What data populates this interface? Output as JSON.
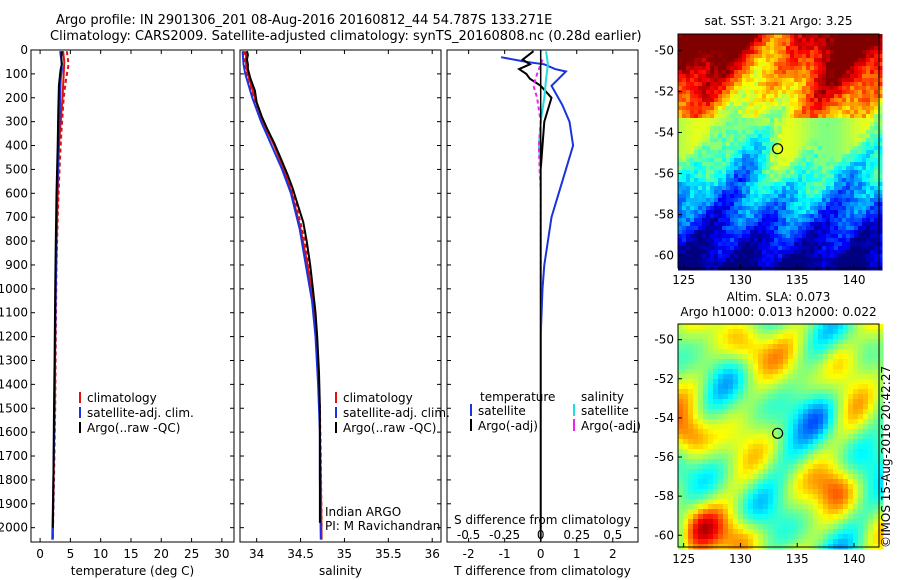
{
  "header": {
    "line1": "Argo profile: IN 2901306_201 08-Aug-2016 20160812_44 54.787S 133.271E",
    "line2": "Climatology: CARS2009. Satellite-adjusted climatology: synTS_20160808.nc (0.28d earlier)"
  },
  "colors": {
    "climatology": "#dd1111",
    "satellite": "#1a33dd",
    "argo": "#000000",
    "cyan": "#22dddd",
    "magenta": "#ee22ee"
  },
  "chart_data": [
    {
      "id": "temperature",
      "type": "line",
      "xlabel": "temperature (deg C)",
      "ylabel": "",
      "xlim": [
        -1.5,
        32
      ],
      "ylim": [
        2060,
        0
      ],
      "xticks": [
        0,
        5,
        10,
        15,
        20,
        25,
        30
      ],
      "yticks": [
        0,
        100,
        200,
        300,
        400,
        500,
        600,
        700,
        800,
        900,
        1000,
        1100,
        1200,
        1300,
        1400,
        1500,
        1600,
        1700,
        1800,
        1900,
        2000
      ],
      "legend": {
        "placement": "lower-right",
        "entries": [
          "climatology",
          "satellite-adj. clim.",
          "Argo(..raw -QC)"
        ]
      },
      "series": [
        {
          "name": "climatology",
          "color": "#dd1111",
          "dashed": false,
          "points": [
            [
              3.8,
              5
            ],
            [
              4.0,
              50
            ],
            [
              3.9,
              100
            ],
            [
              3.7,
              200
            ],
            [
              3.4,
              300
            ],
            [
              3.1,
              400
            ],
            [
              2.9,
              600
            ],
            [
              2.7,
              800
            ],
            [
              2.6,
              1000
            ],
            [
              2.5,
              1200
            ],
            [
              2.4,
              1500
            ],
            [
              2.2,
              1800
            ],
            [
              2.0,
              2050
            ]
          ]
        },
        {
          "name": "climatology",
          "color": "#dd1111",
          "dashed": true,
          "points": [
            [
              4.4,
              5
            ],
            [
              4.7,
              60
            ],
            [
              4.3,
              120
            ],
            [
              3.9,
              200
            ],
            [
              3.5,
              350
            ],
            [
              3.2,
              500
            ],
            [
              2.9,
              700
            ],
            [
              2.7,
              900
            ],
            [
              2.6,
              1200
            ],
            [
              2.5,
              1500
            ],
            [
              2.3,
              1800
            ],
            [
              2.1,
              2050
            ]
          ]
        },
        {
          "name": "satellite-adj. clim.",
          "color": "#1a33dd",
          "dashed": false,
          "points": [
            [
              3.3,
              5
            ],
            [
              3.5,
              40
            ],
            [
              3.6,
              80
            ],
            [
              3.4,
              120
            ],
            [
              3.3,
              200
            ],
            [
              3.2,
              300
            ],
            [
              3.0,
              450
            ],
            [
              2.8,
              600
            ],
            [
              2.7,
              800
            ],
            [
              2.6,
              1000
            ],
            [
              2.5,
              1200
            ],
            [
              2.4,
              1500
            ],
            [
              2.2,
              1800
            ],
            [
              2.1,
              2050
            ]
          ]
        },
        {
          "name": "Argo(..raw -QC)",
          "color": "#000000",
          "dashed": false,
          "points": [
            [
              3.6,
              5
            ],
            [
              3.5,
              30
            ],
            [
              3.6,
              60
            ],
            [
              3.4,
              80
            ],
            [
              3.3,
              100
            ],
            [
              3.1,
              150
            ],
            [
              3.0,
              250
            ],
            [
              2.9,
              400
            ],
            [
              2.7,
              600
            ],
            [
              2.6,
              800
            ],
            [
              2.5,
              1000
            ],
            [
              2.4,
              1300
            ],
            [
              2.3,
              1500
            ],
            [
              2.2,
              1800
            ],
            [
              2.1,
              2000
            ]
          ]
        }
      ]
    },
    {
      "id": "salinity",
      "type": "line",
      "xlabel": "salinity",
      "ylabel": "",
      "xlim": [
        33.81,
        36.1
      ],
      "ylim": [
        2060,
        0
      ],
      "xticks": [
        34,
        34.5,
        35,
        35.5,
        36
      ],
      "legend": {
        "placement": "lower-right",
        "entries": [
          "climatology",
          "satellite-adj. clim.",
          "Argo(..raw -QC)"
        ]
      },
      "annotations": [
        "Indian ARGO",
        "PI: M Ravichandran"
      ],
      "series": [
        {
          "name": "climatology",
          "color": "#dd1111",
          "dashed": false,
          "points": [
            [
              33.88,
              5
            ],
            [
              33.88,
              60
            ],
            [
              33.9,
              100
            ],
            [
              33.98,
              200
            ],
            [
              34.07,
              300
            ],
            [
              34.2,
              400
            ],
            [
              34.31,
              500
            ],
            [
              34.4,
              600
            ],
            [
              34.5,
              750
            ],
            [
              34.58,
              900
            ],
            [
              34.64,
              1050
            ],
            [
              34.68,
              1200
            ],
            [
              34.71,
              1400
            ],
            [
              34.72,
              1600
            ],
            [
              34.73,
              1800
            ],
            [
              34.74,
              2050
            ]
          ]
        },
        {
          "name": "climatology",
          "color": "#dd1111",
          "dashed": true,
          "points": [
            [
              33.86,
              5
            ],
            [
              33.87,
              70
            ],
            [
              33.9,
              130
            ],
            [
              33.99,
              220
            ],
            [
              34.1,
              320
            ],
            [
              34.23,
              420
            ],
            [
              34.35,
              530
            ],
            [
              34.45,
              650
            ],
            [
              34.55,
              800
            ],
            [
              34.62,
              950
            ],
            [
              34.67,
              1100
            ],
            [
              34.7,
              1300
            ],
            [
              34.72,
              1500
            ],
            [
              34.73,
              1700
            ],
            [
              34.74,
              2000
            ]
          ]
        },
        {
          "name": "satellite-adj. clim.",
          "color": "#1a33dd",
          "dashed": false,
          "points": [
            [
              33.84,
              5
            ],
            [
              33.85,
              60
            ],
            [
              33.87,
              100
            ],
            [
              33.95,
              200
            ],
            [
              34.05,
              300
            ],
            [
              34.17,
              400
            ],
            [
              34.29,
              500
            ],
            [
              34.39,
              600
            ],
            [
              34.49,
              750
            ],
            [
              34.56,
              900
            ],
            [
              34.63,
              1050
            ],
            [
              34.67,
              1200
            ],
            [
              34.7,
              1400
            ],
            [
              34.72,
              1600
            ],
            [
              34.72,
              1800
            ],
            [
              34.73,
              2050
            ]
          ]
        },
        {
          "name": "Argo(..raw -QC)",
          "color": "#000000",
          "dashed": false,
          "points": [
            [
              33.89,
              5
            ],
            [
              33.9,
              20
            ],
            [
              33.89,
              40
            ],
            [
              33.9,
              60
            ],
            [
              33.9,
              80
            ],
            [
              33.93,
              120
            ],
            [
              33.98,
              170
            ],
            [
              34.0,
              220
            ],
            [
              34.06,
              280
            ],
            [
              34.12,
              330
            ],
            [
              34.2,
              390
            ],
            [
              34.27,
              450
            ],
            [
              34.35,
              520
            ],
            [
              34.41,
              580
            ],
            [
              34.47,
              650
            ],
            [
              34.53,
              720
            ],
            [
              34.57,
              800
            ],
            [
              34.61,
              900
            ],
            [
              34.64,
              1000
            ],
            [
              34.67,
              1100
            ],
            [
              34.69,
              1200
            ],
            [
              34.71,
              1350
            ],
            [
              34.72,
              1500
            ],
            [
              34.72,
              1700
            ],
            [
              34.72,
              1900
            ],
            [
              34.72,
              1980
            ]
          ]
        }
      ]
    },
    {
      "id": "difference",
      "type": "line",
      "xlabel": "T difference from climatology",
      "top_axis_label": "S difference from climatology",
      "xlim": [
        -2.6,
        2.7
      ],
      "ylim": [
        2060,
        0
      ],
      "xticks": [
        -2,
        -1,
        0,
        1,
        2
      ],
      "top_ticks": [
        -0.5,
        -0.25,
        0,
        0.25,
        0.5
      ],
      "top_tick_labels": [
        "-0.5",
        "-0.25",
        "0",
        "0.25",
        "0.5"
      ],
      "legend": {
        "placement": "lower-center",
        "left_header": "temperature",
        "right_header": "salinity",
        "entries": [
          "satellite",
          "Argo(-adj)",
          "satellite",
          "Argo(-adj)"
        ]
      },
      "series": [
        {
          "name": "temperature satellite",
          "color": "#1a33dd",
          "dashed": false,
          "points": [
            [
              -1.1,
              30
            ],
            [
              -0.4,
              50
            ],
            [
              0.1,
              60
            ],
            [
              0.4,
              80
            ],
            [
              0.7,
              90
            ],
            [
              0.5,
              120
            ],
            [
              0.3,
              150
            ],
            [
              0.6,
              230
            ],
            [
              0.8,
              300
            ],
            [
              0.9,
              400
            ],
            [
              0.7,
              500
            ],
            [
              0.5,
              600
            ],
            [
              0.3,
              700
            ],
            [
              0.2,
              800
            ],
            [
              0.1,
              900
            ],
            [
              0.05,
              1000
            ],
            [
              0.0,
              1200
            ],
            [
              0.0,
              1500
            ],
            [
              0.0,
              1800
            ],
            [
              0.0,
              2050
            ]
          ]
        },
        {
          "name": "temperature Argo(-adj)",
          "color": "#000000",
          "dashed": false,
          "points": [
            [
              -0.2,
              5
            ],
            [
              -0.5,
              40
            ],
            [
              -0.3,
              60
            ],
            [
              -0.6,
              80
            ],
            [
              -0.4,
              100
            ],
            [
              -0.3,
              120
            ],
            [
              0.0,
              150
            ],
            [
              0.3,
              200
            ],
            [
              0.2,
              250
            ],
            [
              0.1,
              300
            ],
            [
              0.05,
              400
            ],
            [
              0.0,
              500
            ],
            [
              0.0,
              700
            ],
            [
              0.0,
              1000
            ],
            [
              0.0,
              1500
            ],
            [
              0.0,
              2000
            ]
          ]
        },
        {
          "name": "salinity satellite",
          "color": "#22dddd",
          "dashed": false,
          "points": [
            [
              0.15,
              5
            ],
            [
              0.2,
              60
            ],
            [
              0.15,
              120
            ],
            [
              0.1,
              200
            ],
            [
              0.0,
              300
            ],
            [
              -0.05,
              400
            ],
            [
              0.0,
              500
            ],
            [
              0.0,
              700
            ],
            [
              0.0,
              1000
            ],
            [
              0.0,
              1400
            ],
            [
              0.0,
              1800
            ],
            [
              0.0,
              2050
            ]
          ]
        },
        {
          "name": "salinity Argo(-adj)",
          "color": "#ee22ee",
          "dashed": true,
          "points": [
            [
              0.05,
              40
            ],
            [
              -0.1,
              100
            ],
            [
              -0.2,
              150
            ],
            [
              -0.1,
              200
            ],
            [
              0.0,
              300
            ],
            [
              -0.05,
              400
            ],
            [
              -0.03,
              500
            ],
            [
              0.0,
              600
            ],
            [
              0.0,
              800
            ],
            [
              0.0,
              1000
            ],
            [
              0.0,
              1400
            ],
            [
              0.0,
              1800
            ],
            [
              0.0,
              2050
            ]
          ]
        }
      ]
    },
    {
      "id": "sst_map",
      "type": "heatmap",
      "title": "sat. SST: 3.21  Argo: 3.25",
      "xlim": [
        124.5,
        142.2
      ],
      "ylim": [
        -60.6,
        -49.2
      ],
      "xticks": [
        125,
        130,
        135,
        140
      ],
      "yticks": [
        -50,
        -52,
        -54,
        -56,
        -58,
        -60
      ],
      "marker": {
        "lon": 133.271,
        "lat": -54.787
      },
      "colorscale": "jet"
    },
    {
      "id": "sla_map",
      "type": "heatmap",
      "title": "Altim. SLA: 0.073",
      "subtitle": "Argo h1000: 0.013 h2000: 0.022",
      "xlim": [
        124.5,
        142.2
      ],
      "ylim": [
        -60.6,
        -49.2
      ],
      "xticks": [
        125,
        130,
        135,
        140
      ],
      "yticks": [
        -50,
        -52,
        -54,
        -56,
        -58,
        -60
      ],
      "marker": {
        "lon": 133.271,
        "lat": -54.787
      },
      "colorscale": "jet"
    }
  ],
  "credit": "©IMOS 15-Aug-2016 20:42:27"
}
